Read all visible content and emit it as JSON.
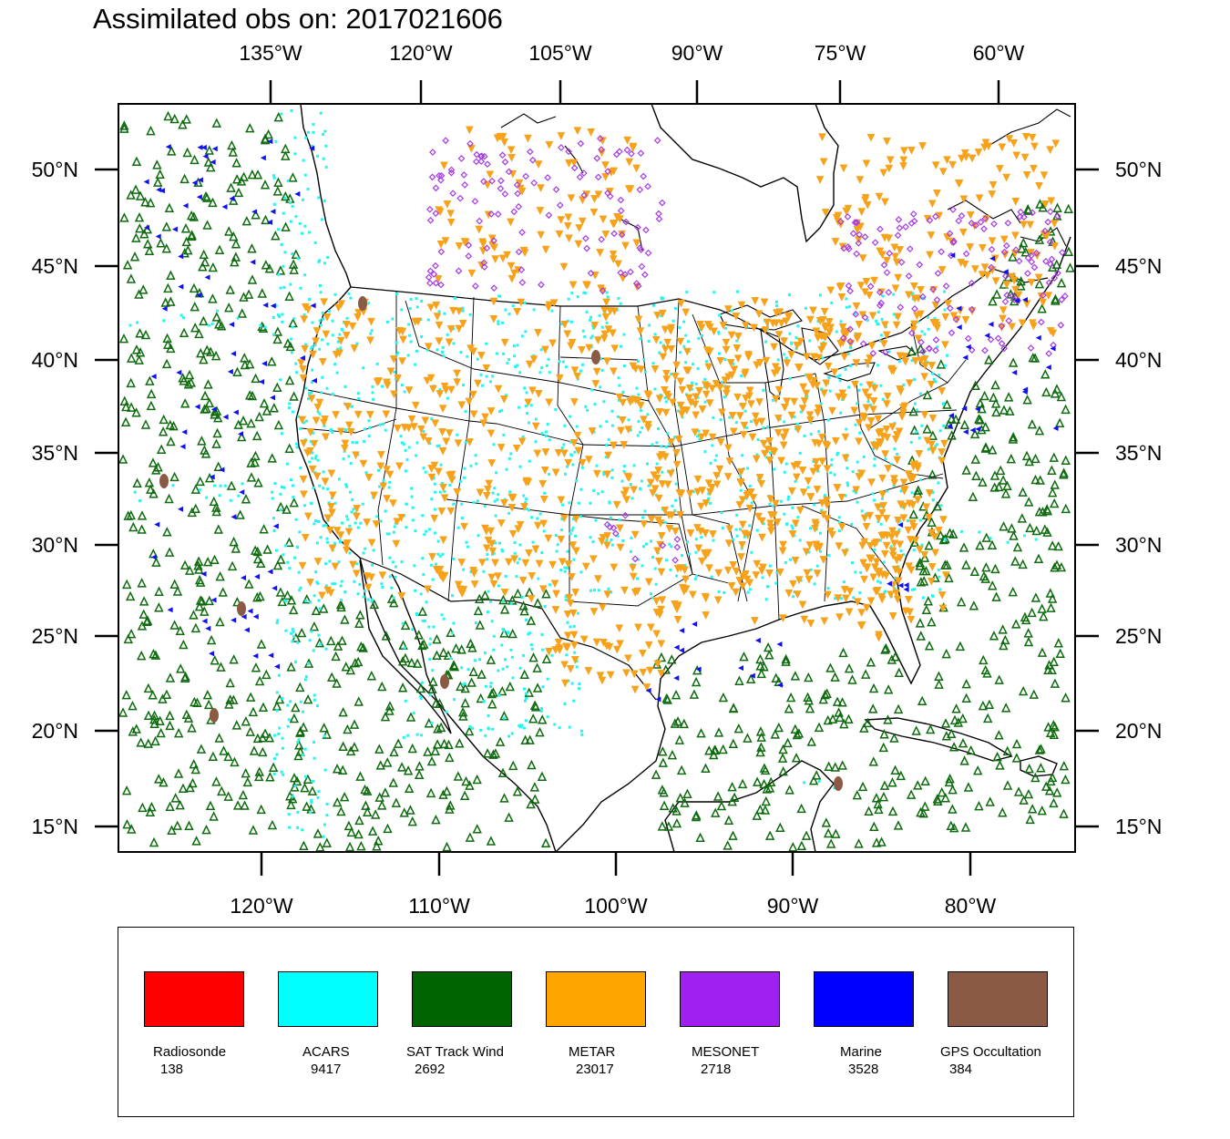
{
  "title": "Assimilated obs on: 2017021606",
  "top_lon_ticks": [
    "135°W",
    "120°W",
    "105°W",
    "90°W",
    "75°W",
    "60°W"
  ],
  "bottom_lon_ticks": [
    "120°W",
    "110°W",
    "100°W",
    "90°W",
    "80°W"
  ],
  "lat_ticks": [
    "50°N",
    "45°N",
    "40°N",
    "35°N",
    "30°N",
    "25°N",
    "20°N",
    "15°N"
  ],
  "legend": [
    {
      "label": "Radiosonde",
      "count": "138",
      "color": "#ff0000",
      "count_value": 138
    },
    {
      "label": "ACARS",
      "count": "9417",
      "color": "#00ffff",
      "count_value": 9417
    },
    {
      "label": "SAT Track Wind",
      "count": "2692",
      "color": "#006400",
      "count_value": 2692
    },
    {
      "label": "METAR",
      "count": "23017",
      "color": "#ffa500",
      "count_value": 23017
    },
    {
      "label": "MESONET",
      "count": "2718",
      "color": "#a020f0",
      "count_value": 2718
    },
    {
      "label": "Marine",
      "count": "3528",
      "color": "#0000ff",
      "count_value": 3528
    },
    {
      "label": "GPS Occultation",
      "count": "384",
      "color": "#8b5a44",
      "count_value": 384
    }
  ],
  "colors": {
    "sat_wind_marker": "#0e6b0e",
    "acars_marker": "#25f5f0",
    "metar_marker": "#f7a21b",
    "mesonet_marker": "#a63be6",
    "marine_marker": "#1010f0",
    "gps_marker": "#8b5a44",
    "coastline": "#000000"
  }
}
